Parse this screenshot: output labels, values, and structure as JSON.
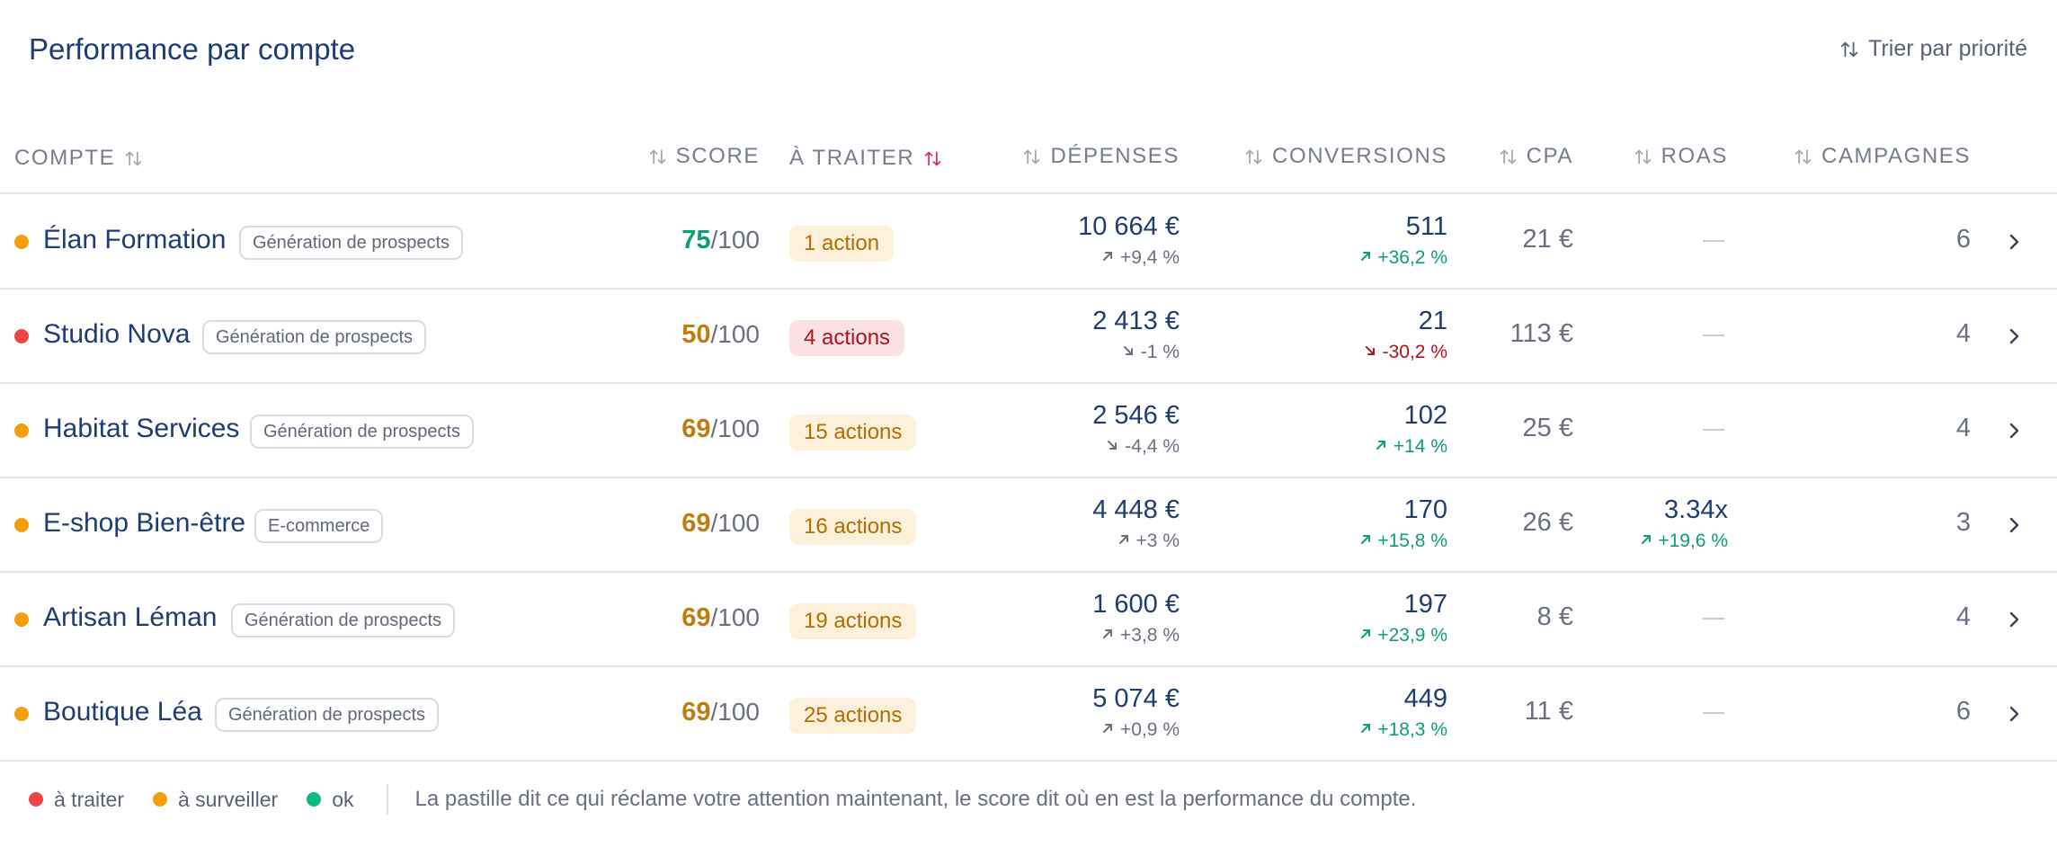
{
  "title": "Performance par compte",
  "sort_button": {
    "label": "Trier par priorité"
  },
  "columns": {
    "compte": "COMPTE",
    "score": "SCORE",
    "a_traiter": "À TRAITER",
    "depenses": "DÉPENSES",
    "conversions": "CONVERSIONS",
    "cpa": "CPA",
    "roas": "ROAS",
    "campagnes": "CAMPAGNES"
  },
  "score_suffix": "/100",
  "rows": [
    {
      "status": "à surveiller",
      "status_color": "#f59e0b",
      "name": "Élan Formation",
      "tag": "Génération de prospects",
      "score": "75",
      "score_color": "#0e9f6e",
      "actions": "1 action",
      "actions_level": "amber",
      "spend": "10 664 €",
      "spend_delta": "+9,4 %",
      "spend_dir": "up",
      "conv": "511",
      "conv_delta": "+36,2 %",
      "conv_dir": "up-good",
      "cpa": "21 €",
      "roas": "",
      "roas_delta": "",
      "campaigns": "6"
    },
    {
      "status": "à traiter",
      "status_color": "#ef4444",
      "name": "Studio Nova",
      "tag": "Génération de prospects",
      "score": "50",
      "score_color": "#c27c0e",
      "actions": "4 actions",
      "actions_level": "red",
      "spend": "2 413 €",
      "spend_delta": "-1 %",
      "spend_dir": "down",
      "conv": "21",
      "conv_delta": "-30,2 %",
      "conv_dir": "down-bad",
      "cpa": "113 €",
      "roas": "",
      "roas_delta": "",
      "campaigns": "4"
    },
    {
      "status": "à surveiller",
      "status_color": "#f59e0b",
      "name": "Habitat Services",
      "tag": "Génération de prospects",
      "score": "69",
      "score_color": "#c27c0e",
      "actions": "15 actions",
      "actions_level": "amber",
      "spend": "2 546 €",
      "spend_delta": "-4,4 %",
      "spend_dir": "down",
      "conv": "102",
      "conv_delta": "+14 %",
      "conv_dir": "up-good",
      "cpa": "25 €",
      "roas": "",
      "roas_delta": "",
      "campaigns": "4"
    },
    {
      "status": "à surveiller",
      "status_color": "#f59e0b",
      "name": "E-shop Bien-être",
      "tag": "E-commerce",
      "score": "69",
      "score_color": "#c27c0e",
      "actions": "16 actions",
      "actions_level": "amber",
      "spend": "4 448 €",
      "spend_delta": "+3 %",
      "spend_dir": "up",
      "conv": "170",
      "conv_delta": "+15,8 %",
      "conv_dir": "up-good",
      "cpa": "26 €",
      "roas": "3.34x",
      "roas_delta": "+19,6 %",
      "campaigns": "3"
    },
    {
      "status": "à surveiller",
      "status_color": "#f59e0b",
      "name": "Artisan Léman",
      "tag": "Génération de prospects",
      "score": "69",
      "score_color": "#c27c0e",
      "actions": "19 actions",
      "actions_level": "amber",
      "spend": "1 600 €",
      "spend_delta": "+3,8 %",
      "spend_dir": "up",
      "conv": "197",
      "conv_delta": "+23,9 %",
      "conv_dir": "up-good",
      "cpa": "8 €",
      "roas": "",
      "roas_delta": "",
      "campaigns": "4"
    },
    {
      "status": "à surveiller",
      "status_color": "#f59e0b",
      "name": "Boutique Léa",
      "tag": "Génération de prospects",
      "score": "69",
      "score_color": "#c27c0e",
      "actions": "25 actions",
      "actions_level": "amber",
      "spend": "5 074 €",
      "spend_delta": "+0,9 %",
      "spend_dir": "up",
      "conv": "449",
      "conv_delta": "+18,3 %",
      "conv_dir": "up-good",
      "cpa": "11 €",
      "roas": "",
      "roas_delta": "",
      "campaigns": "6"
    }
  ],
  "legend": {
    "items": [
      {
        "label": "à traiter",
        "color": "#ef4444"
      },
      {
        "label": "à surveiller",
        "color": "#f59e0b"
      },
      {
        "label": "ok",
        "color": "#10b981"
      }
    ],
    "note": "La pastille dit ce qui réclame votre attention maintenant, le score dit où en est la performance du compte."
  },
  "colors": {
    "good": "#0e9f6e",
    "bad": "#b3111c",
    "neutral": "#6a7082",
    "accent_sort": "#d6336c"
  }
}
